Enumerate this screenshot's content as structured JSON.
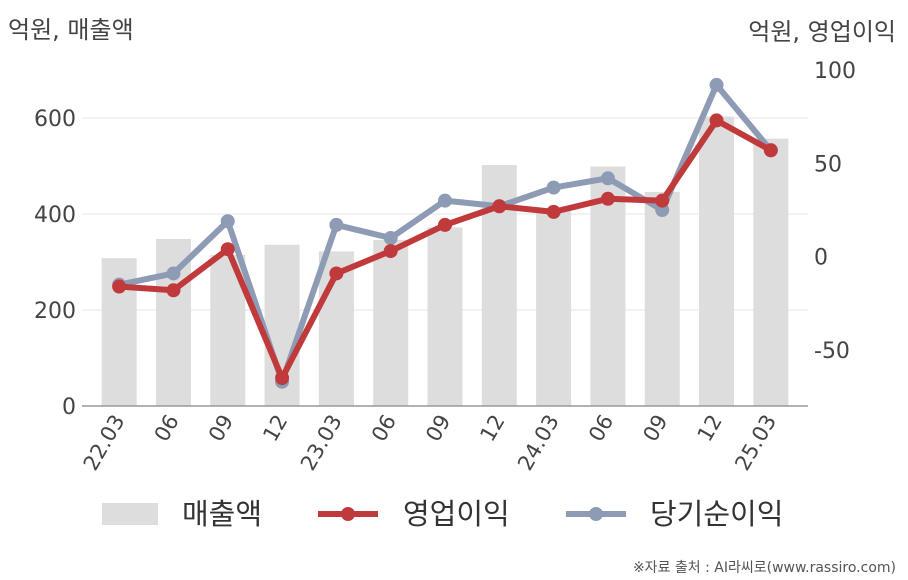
{
  "chart_data": {
    "type": "bar+line",
    "categories": [
      "22.03",
      "06",
      "09",
      "12",
      "23.03",
      "06",
      "09",
      "12",
      "24.03",
      "06",
      "09",
      "12",
      "25.03"
    ],
    "left_axis": {
      "unit_label": "억원, 매출액",
      "ylim": [
        0,
        700
      ],
      "ticks": [
        0,
        200,
        400,
        600
      ]
    },
    "right_axis": {
      "unit_label": "억원, 영업이익",
      "ylim": [
        -80,
        100
      ],
      "ticks": [
        -50,
        0,
        50,
        100
      ]
    },
    "series": [
      {
        "name": "매출액",
        "kind": "bar",
        "axis": "left",
        "color": "#dddddd",
        "values": [
          308,
          348,
          315,
          336,
          322,
          346,
          372,
          502,
          412,
          499,
          446,
          603,
          557
        ]
      },
      {
        "name": "영업이익",
        "kind": "line",
        "axis": "right",
        "color": "#c0393b",
        "values": [
          -16,
          -18,
          4,
          -65,
          -9,
          3,
          17,
          27,
          24,
          31,
          30,
          73,
          57
        ]
      },
      {
        "name": "당기순이익",
        "kind": "line",
        "axis": "right",
        "color": "#8e9bb5",
        "values": [
          -15,
          -9,
          19,
          -67,
          17,
          10,
          30,
          27,
          37,
          42,
          25,
          92,
          57
        ]
      }
    ],
    "grid": true,
    "legend": "bottom"
  },
  "source_note": "※자료 출처 : AI라씨로(www.rassiro.com)"
}
